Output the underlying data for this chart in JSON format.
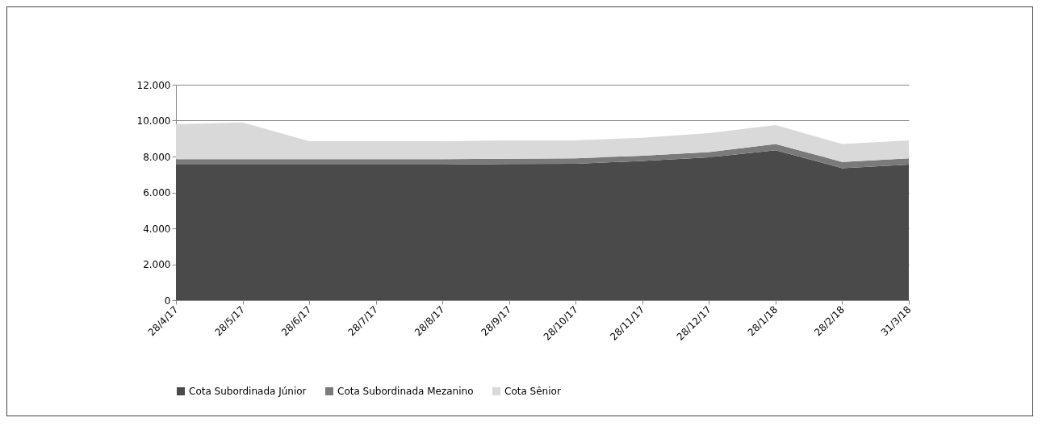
{
  "chart_data": {
    "type": "area",
    "stacked": true,
    "categories": [
      "28/4/17",
      "28/5/17",
      "28/6/17",
      "28/7/17",
      "28/8/17",
      "28/9/17",
      "28/10/17",
      "28/11/17",
      "28/12/17",
      "28/1/18",
      "28/2/18",
      "31/3/18"
    ],
    "series": [
      {
        "name": "Cota Subordinada Júnior",
        "color": "#4a4a4a",
        "values": [
          7550,
          7550,
          7550,
          7550,
          7550,
          7580,
          7600,
          7750,
          7950,
          8350,
          7350,
          7550
        ]
      },
      {
        "name": "Cota Subordinada Mezanino",
        "color": "#7a7a7a",
        "values": [
          300,
          300,
          300,
          300,
          300,
          300,
          300,
          300,
          300,
          350,
          350,
          350
        ]
      },
      {
        "name": "Cota Sênior",
        "color": "#d9d9d9",
        "values": [
          1950,
          2050,
          1000,
          1000,
          1000,
          1020,
          1000,
          1000,
          1050,
          1050,
          1000,
          1000
        ]
      }
    ],
    "ylim": [
      0,
      12000
    ],
    "yticks": [
      0,
      {
        "value": 2000,
        "label": "2.000"
      },
      {
        "value": 4000,
        "label": "4.000"
      },
      {
        "value": 6000,
        "label": "6.000"
      },
      {
        "value": 8000,
        "label": "8.000"
      },
      {
        "value": 10000,
        "label": "10.000"
      },
      {
        "value": 12000,
        "label": "12.000"
      }
    ],
    "grid": "y",
    "legend": "bottom"
  }
}
